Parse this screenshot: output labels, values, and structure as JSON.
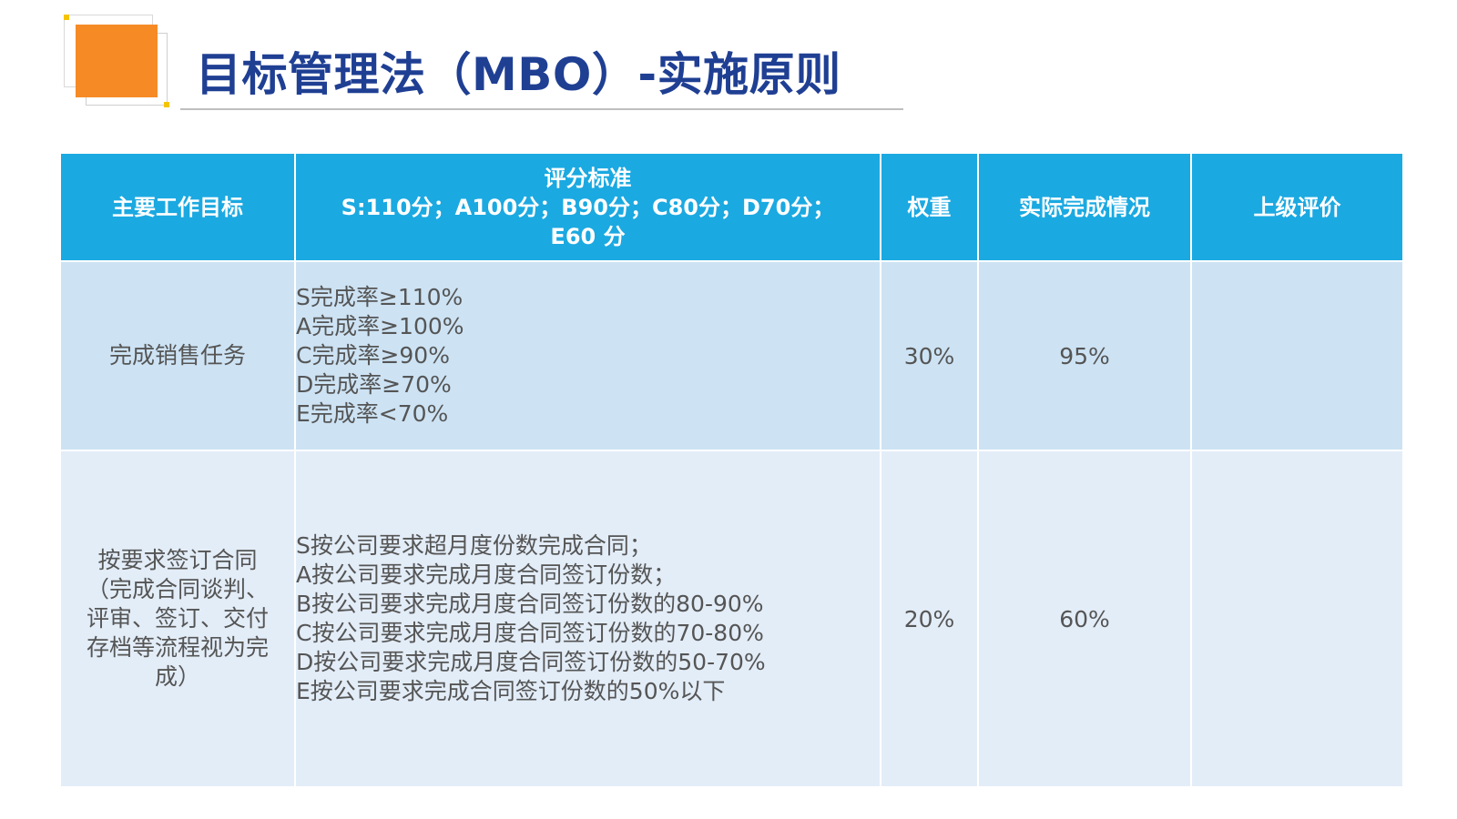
{
  "title": "目标管理法（MBO）-实施原则",
  "colors": {
    "title": "#1f3f93",
    "header_bg": "#1ba9e1",
    "accent": "#f68b26",
    "row1_bg": "#cde3f4",
    "row2_bg": "#e3edf8"
  },
  "table": {
    "headers": {
      "goal": "主要工作目标",
      "criteria": [
        "评分标准",
        "S:110分；A100分；B90分；C80分；D70分；",
        "E60 分"
      ],
      "weight": "权重",
      "actual": "实际完成情况",
      "review": "上级评价"
    },
    "rows": [
      {
        "goal": [
          "完成销售任务"
        ],
        "criteria": [
          "S完成率≥110%",
          "A完成率≥100%",
          "C完成率≥90%",
          "D完成率≥70%",
          "E完成率<70%"
        ],
        "weight": "30%",
        "actual": "95%",
        "review": ""
      },
      {
        "goal": [
          "按要求签订合同",
          "（完成合同谈判、",
          "评审、签订、交付",
          "存档等流程视为完",
          "成）"
        ],
        "criteria": [
          "S按公司要求超月度份数完成合同；",
          "A按公司要求完成月度合同签订份数；",
          "B按公司要求完成月度合同签订份数的80-90%",
          "C按公司要求完成月度合同签订份数的70-80%",
          "D按公司要求完成月度合同签订份数的50-70%",
          "E按公司要求完成合同签订份数的50%以下"
        ],
        "weight": "20%",
        "actual": "60%",
        "review": ""
      }
    ]
  }
}
